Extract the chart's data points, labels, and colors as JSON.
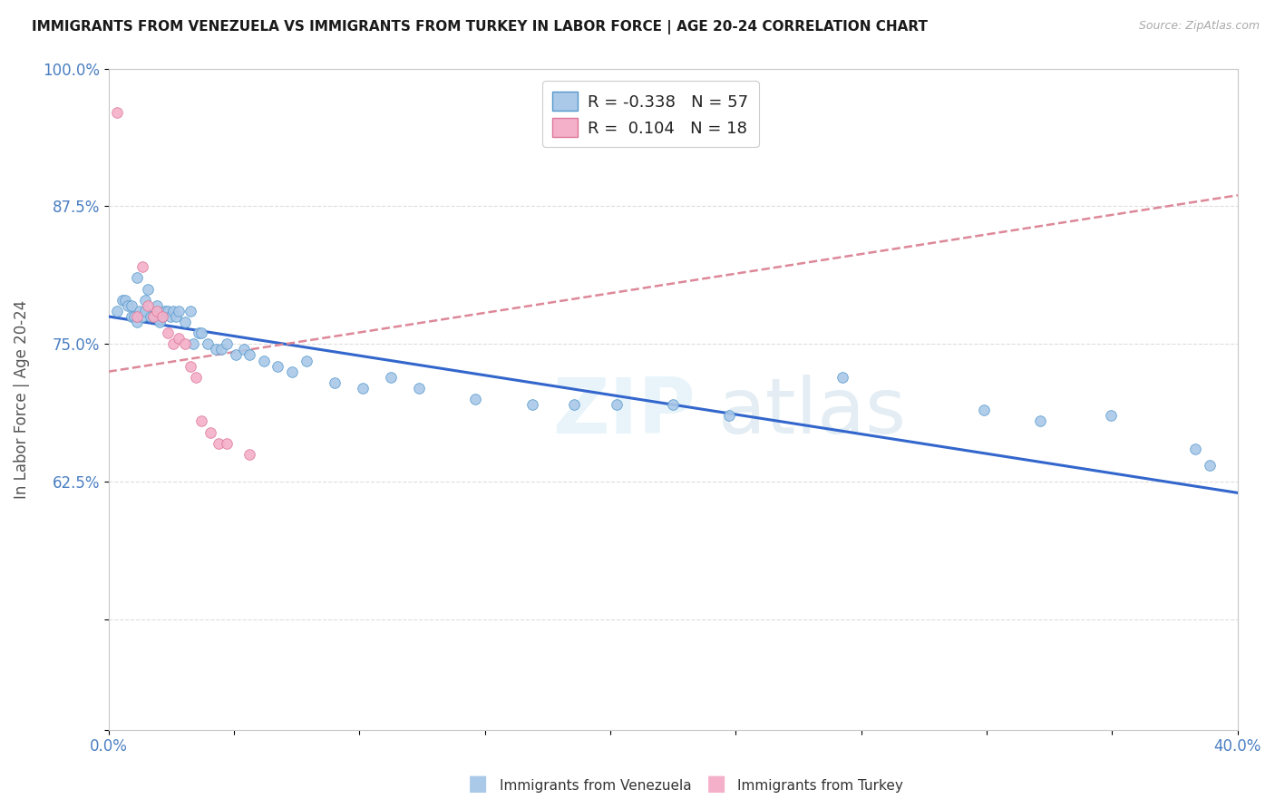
{
  "title": "IMMIGRANTS FROM VENEZUELA VS IMMIGRANTS FROM TURKEY IN LABOR FORCE | AGE 20-24 CORRELATION CHART",
  "source": "Source: ZipAtlas.com",
  "ylabel": "In Labor Force | Age 20-24",
  "xlim": [
    0.0,
    0.4
  ],
  "ylim": [
    0.4,
    1.0
  ],
  "venezuela_fill": "#aac8e8",
  "venezuela_edge": "#5599cc",
  "turkey_fill": "#f4b0c8",
  "turkey_edge": "#dd7799",
  "venezuela_line_color": "#3366cc",
  "turkey_trend_color": "#dd8899",
  "R_venezuela": -0.338,
  "N_venezuela": 57,
  "R_turkey": 0.104,
  "N_turkey": 18,
  "venezuela_x": [
    0.003,
    0.005,
    0.006,
    0.007,
    0.008,
    0.008,
    0.009,
    0.01,
    0.01,
    0.011,
    0.012,
    0.013,
    0.013,
    0.014,
    0.015,
    0.016,
    0.017,
    0.018,
    0.019,
    0.02,
    0.021,
    0.022,
    0.023,
    0.024,
    0.025,
    0.027,
    0.029,
    0.03,
    0.032,
    0.033,
    0.035,
    0.038,
    0.04,
    0.042,
    0.045,
    0.048,
    0.05,
    0.055,
    0.06,
    0.065,
    0.07,
    0.08,
    0.09,
    0.1,
    0.11,
    0.13,
    0.15,
    0.165,
    0.18,
    0.2,
    0.22,
    0.26,
    0.31,
    0.33,
    0.355,
    0.385,
    0.39
  ],
  "venezuela_y": [
    0.78,
    0.79,
    0.79,
    0.785,
    0.785,
    0.775,
    0.775,
    0.81,
    0.77,
    0.78,
    0.775,
    0.79,
    0.78,
    0.8,
    0.775,
    0.775,
    0.785,
    0.77,
    0.775,
    0.78,
    0.78,
    0.775,
    0.78,
    0.775,
    0.78,
    0.77,
    0.78,
    0.75,
    0.76,
    0.76,
    0.75,
    0.745,
    0.745,
    0.75,
    0.74,
    0.745,
    0.74,
    0.735,
    0.73,
    0.725,
    0.735,
    0.715,
    0.71,
    0.72,
    0.71,
    0.7,
    0.695,
    0.695,
    0.695,
    0.695,
    0.685,
    0.72,
    0.69,
    0.68,
    0.685,
    0.655,
    0.64
  ],
  "turkey_x": [
    0.003,
    0.01,
    0.012,
    0.014,
    0.016,
    0.017,
    0.019,
    0.021,
    0.023,
    0.025,
    0.027,
    0.029,
    0.031,
    0.033,
    0.036,
    0.039,
    0.042,
    0.05
  ],
  "turkey_y": [
    0.96,
    0.775,
    0.82,
    0.785,
    0.775,
    0.78,
    0.775,
    0.76,
    0.75,
    0.755,
    0.75,
    0.73,
    0.72,
    0.68,
    0.67,
    0.66,
    0.66,
    0.65
  ]
}
